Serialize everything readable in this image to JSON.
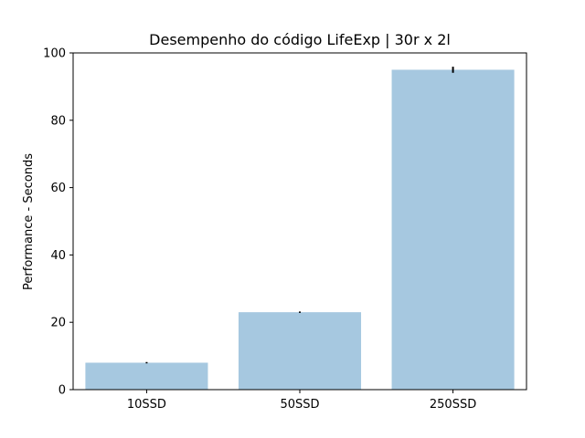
{
  "chart_data": {
    "type": "bar",
    "title": "Desempenho do código LifeExp | 30r x 2l",
    "xlabel": "",
    "ylabel": "Performance - Seconds",
    "categories": [
      "10SSD",
      "50SSD",
      "250SSD"
    ],
    "values": [
      8.0,
      23.0,
      95.0
    ],
    "errors": [
      0.2,
      0.2,
      0.9
    ],
    "ylim": [
      0,
      100
    ],
    "yticks": [
      0,
      20,
      40,
      60,
      80,
      100
    ],
    "bar_color": "#a6c8e0",
    "error_color": "#000000",
    "grid": false,
    "legend": "none"
  }
}
